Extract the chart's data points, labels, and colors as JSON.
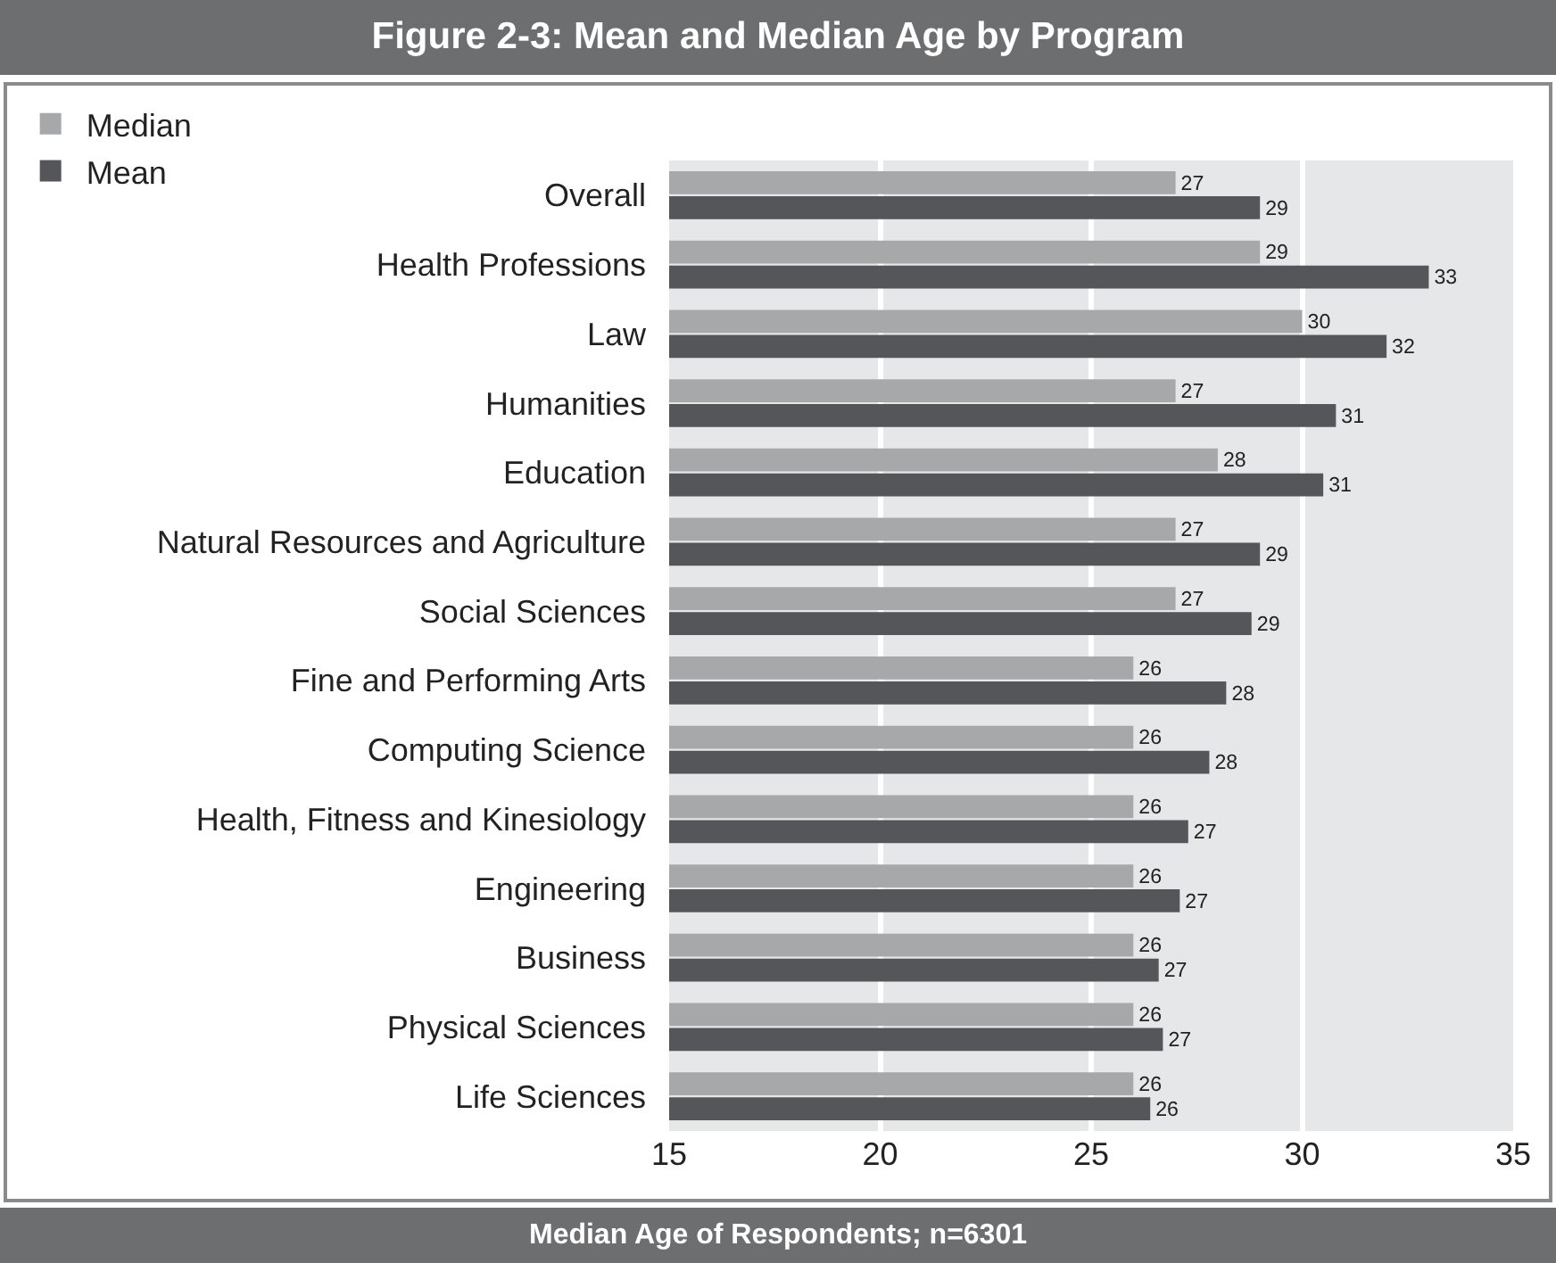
{
  "chart_data": {
    "type": "bar",
    "orientation": "horizontal",
    "title": "Figure 2-3: Mean and Median Age by Program",
    "xlabel": "Median Age of Respondents; n=6301",
    "categories": [
      "Overall",
      "Health Professions",
      "Law",
      "Humanities",
      "Education",
      "Natural Resources and Agriculture",
      "Social Sciences",
      "Fine and Performing Arts",
      "Computing Science",
      "Health, Fitness and Kinesiology",
      "Engineering",
      "Business",
      "Physical Sciences",
      "Life Sciences"
    ],
    "series": [
      {
        "name": "Median",
        "color": "#a7a8aa",
        "values": [
          27,
          29,
          30,
          27,
          28,
          27,
          27,
          26,
          26,
          26,
          26,
          26,
          26,
          26
        ],
        "value_labels": [
          "27",
          "29",
          "30",
          "27",
          "28",
          "27",
          "27",
          "26",
          "26",
          "26",
          "26",
          "26",
          "26",
          "26"
        ]
      },
      {
        "name": "Mean",
        "color": "#555659",
        "values": [
          29.0,
          33.0,
          32.0,
          30.8,
          30.5,
          29.0,
          28.8,
          28.2,
          27.8,
          27.3,
          27.1,
          26.6,
          26.7,
          26.4
        ],
        "value_labels": [
          "29",
          "33",
          "32",
          "31",
          "31",
          "29",
          "29",
          "28",
          "28",
          "27",
          "27",
          "27",
          "27",
          "26"
        ]
      }
    ],
    "xlim": [
      15,
      35
    ],
    "xticks": [
      15,
      20,
      25,
      30,
      35
    ],
    "grid": "x",
    "legend": "top left"
  }
}
